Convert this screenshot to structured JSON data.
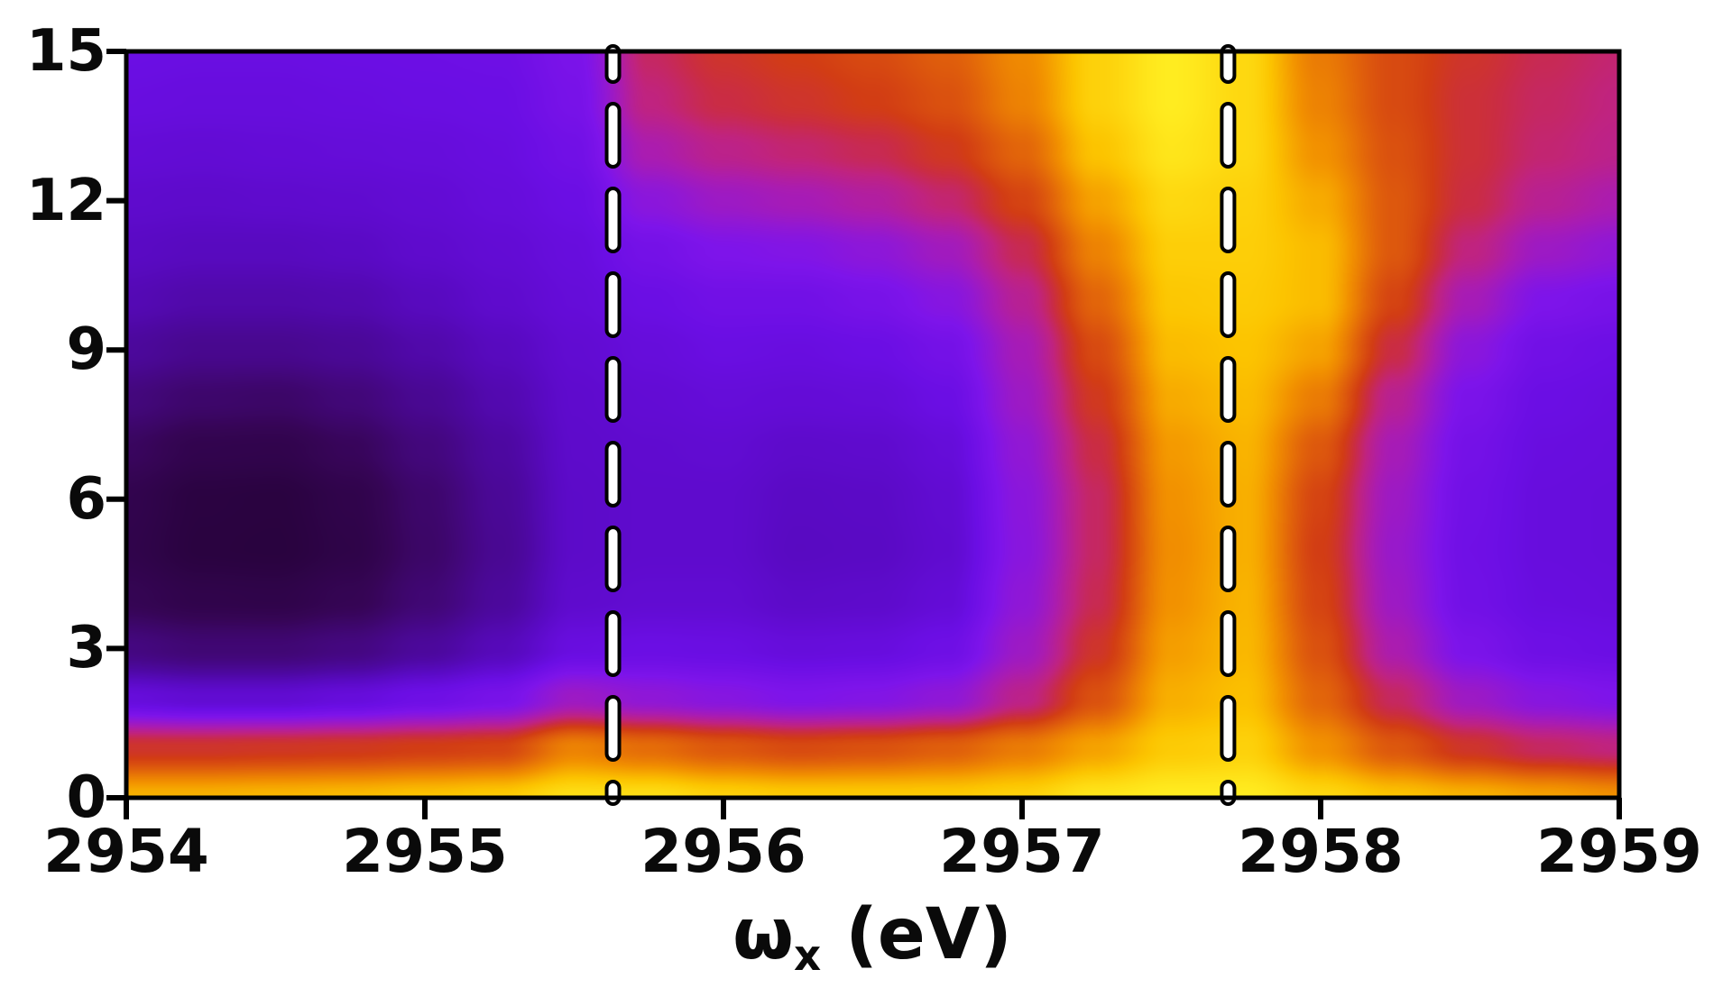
{
  "figure": {
    "background": "#ffffff",
    "frame_color": "#000000",
    "tick_color": "#000000",
    "text_color": "#0a0a0a"
  },
  "chart_data": {
    "type": "heatmap",
    "title": "",
    "xlabel": {
      "text": "ω_x (eV)",
      "base": "ω",
      "sub": "x",
      "rest": " (eV)"
    },
    "ylabel": "",
    "x_range": [
      2954,
      2959
    ],
    "y_range": [
      0,
      15
    ],
    "x_ticks": [
      "2954",
      "2955",
      "2956",
      "2957",
      "2958",
      "2959"
    ],
    "x_tick_values": [
      2954,
      2955,
      2956,
      2957,
      2958,
      2959
    ],
    "y_ticks": [
      "0",
      "3",
      "6",
      "9",
      "12",
      "15"
    ],
    "y_tick_values": [
      0,
      3,
      6,
      9,
      12,
      15
    ],
    "grid_lines": "off",
    "legend": "none",
    "marker_lines_x": [
      2955.63,
      2957.69
    ],
    "marker_line": {
      "core": "#ffffff",
      "outline": "#000000"
    },
    "colormap": [
      [
        0.0,
        "#1d0228"
      ],
      [
        0.08,
        "#2a0340"
      ],
      [
        0.16,
        "#360556"
      ],
      [
        0.25,
        "#43077c"
      ],
      [
        0.33,
        "#4d08a0"
      ],
      [
        0.4,
        "#5a0ac4"
      ],
      [
        0.47,
        "#6b0ee4"
      ],
      [
        0.53,
        "#7e14ea"
      ],
      [
        0.58,
        "#9318d2"
      ],
      [
        0.63,
        "#ab1cb0"
      ],
      [
        0.68,
        "#c02380"
      ],
      [
        0.72,
        "#ca2c44"
      ],
      [
        0.76,
        "#d23d14"
      ],
      [
        0.82,
        "#e2650a"
      ],
      [
        0.88,
        "#f29100"
      ],
      [
        0.94,
        "#fcc400"
      ],
      [
        1.0,
        "#ffec20"
      ]
    ],
    "grid": {
      "x_start": 2954,
      "x_step": 0.25,
      "cols": 21,
      "y_start": 15,
      "y_step": -1,
      "rows": 16,
      "intensity": [
        [
          0.47,
          0.465,
          0.465,
          0.47,
          0.475,
          0.48,
          0.52,
          0.7,
          0.74,
          0.76,
          0.78,
          0.81,
          0.87,
          0.96,
          1.0,
          0.97,
          0.85,
          0.78,
          0.74,
          0.71,
          0.69
        ],
        [
          0.46,
          0.455,
          0.455,
          0.46,
          0.465,
          0.47,
          0.51,
          0.68,
          0.72,
          0.74,
          0.76,
          0.79,
          0.86,
          0.96,
          1.0,
          0.97,
          0.86,
          0.78,
          0.73,
          0.7,
          0.68
        ],
        [
          0.44,
          0.435,
          0.44,
          0.445,
          0.45,
          0.46,
          0.49,
          0.63,
          0.67,
          0.69,
          0.71,
          0.75,
          0.82,
          0.94,
          0.99,
          0.97,
          0.88,
          0.79,
          0.73,
          0.69,
          0.67
        ],
        [
          0.42,
          0.415,
          0.42,
          0.425,
          0.435,
          0.45,
          0.47,
          0.56,
          0.6,
          0.62,
          0.645,
          0.69,
          0.77,
          0.9,
          0.97,
          0.96,
          0.91,
          0.8,
          0.72,
          0.66,
          0.63
        ],
        [
          0.4,
          0.39,
          0.39,
          0.4,
          0.42,
          0.435,
          0.455,
          0.5,
          0.53,
          0.54,
          0.565,
          0.61,
          0.71,
          0.86,
          0.955,
          0.955,
          0.93,
          0.8,
          0.68,
          0.6,
          0.57
        ],
        [
          0.37,
          0.35,
          0.35,
          0.36,
          0.39,
          0.42,
          0.445,
          0.47,
          0.49,
          0.49,
          0.51,
          0.55,
          0.66,
          0.82,
          0.945,
          0.95,
          0.93,
          0.77,
          0.62,
          0.53,
          0.51
        ],
        [
          0.32,
          0.29,
          0.29,
          0.31,
          0.35,
          0.39,
          0.43,
          0.45,
          0.465,
          0.46,
          0.47,
          0.5,
          0.62,
          0.78,
          0.93,
          0.94,
          0.9,
          0.72,
          0.56,
          0.49,
          0.475
        ],
        [
          0.25,
          0.21,
          0.2,
          0.24,
          0.3,
          0.36,
          0.42,
          0.435,
          0.445,
          0.44,
          0.445,
          0.47,
          0.6,
          0.75,
          0.91,
          0.93,
          0.85,
          0.66,
          0.52,
          0.47,
          0.46
        ],
        [
          0.18,
          0.13,
          0.125,
          0.17,
          0.25,
          0.33,
          0.415,
          0.425,
          0.43,
          0.415,
          0.42,
          0.445,
          0.575,
          0.72,
          0.89,
          0.92,
          0.8,
          0.62,
          0.5,
          0.46,
          0.455
        ],
        [
          0.13,
          0.085,
          0.08,
          0.12,
          0.21,
          0.31,
          0.41,
          0.42,
          0.42,
          0.4,
          0.405,
          0.43,
          0.56,
          0.7,
          0.88,
          0.915,
          0.77,
          0.6,
          0.49,
          0.455,
          0.45
        ],
        [
          0.12,
          0.08,
          0.075,
          0.11,
          0.2,
          0.3,
          0.41,
          0.42,
          0.42,
          0.395,
          0.4,
          0.425,
          0.555,
          0.7,
          0.875,
          0.915,
          0.76,
          0.59,
          0.485,
          0.455,
          0.45
        ],
        [
          0.15,
          0.12,
          0.115,
          0.15,
          0.23,
          0.32,
          0.42,
          0.43,
          0.43,
          0.41,
          0.415,
          0.44,
          0.57,
          0.71,
          0.88,
          0.92,
          0.77,
          0.6,
          0.49,
          0.46,
          0.455
        ],
        [
          0.26,
          0.23,
          0.23,
          0.26,
          0.32,
          0.38,
          0.46,
          0.47,
          0.465,
          0.45,
          0.455,
          0.48,
          0.6,
          0.74,
          0.895,
          0.925,
          0.79,
          0.63,
          0.52,
          0.48,
          0.47
        ],
        [
          0.45,
          0.43,
          0.43,
          0.45,
          0.48,
          0.51,
          0.6,
          0.57,
          0.55,
          0.53,
          0.54,
          0.57,
          0.67,
          0.79,
          0.915,
          0.935,
          0.82,
          0.7,
          0.6,
          0.55,
          0.53
        ],
        [
          0.74,
          0.74,
          0.745,
          0.75,
          0.76,
          0.77,
          0.86,
          0.83,
          0.8,
          0.78,
          0.79,
          0.81,
          0.85,
          0.9,
          0.95,
          0.96,
          0.88,
          0.8,
          0.74,
          0.7,
          0.68
        ],
        [
          0.92,
          0.92,
          0.925,
          0.93,
          0.94,
          0.95,
          0.98,
          0.98,
          0.96,
          0.95,
          0.95,
          0.95,
          0.96,
          0.99,
          1.0,
          1.0,
          0.97,
          0.94,
          0.92,
          0.9,
          0.88
        ]
      ]
    }
  }
}
